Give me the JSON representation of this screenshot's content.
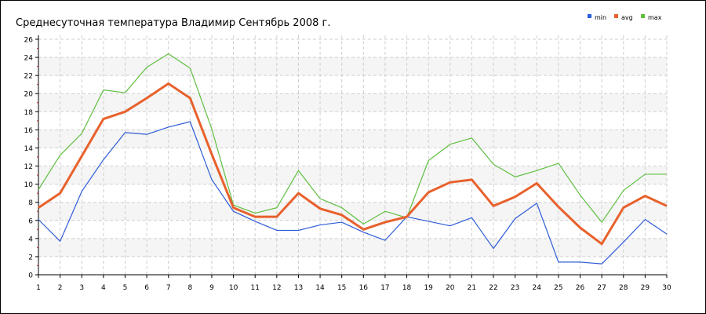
{
  "chart_data": {
    "type": "line",
    "title": "Среднесуточная температура Владимир  Сентябрь 2008 г.",
    "xlabel": "",
    "ylabel": "",
    "x": [
      1,
      2,
      3,
      4,
      5,
      6,
      7,
      8,
      9,
      10,
      11,
      12,
      13,
      14,
      15,
      16,
      17,
      18,
      19,
      20,
      21,
      22,
      23,
      24,
      25,
      26,
      27,
      28,
      29,
      30
    ],
    "xlim": [
      1,
      30
    ],
    "ylim": [
      0,
      26
    ],
    "yticks": [
      0,
      2,
      4,
      6,
      8,
      10,
      12,
      14,
      16,
      18,
      20,
      22,
      24,
      26
    ],
    "grid": true,
    "legend_position": "top-right",
    "series": [
      {
        "name": "min",
        "color": "#2e5bd8",
        "values": [
          6.1,
          3.7,
          9.2,
          12.7,
          15.7,
          15.5,
          16.3,
          16.9,
          10.5,
          7.0,
          5.9,
          4.9,
          4.9,
          5.5,
          5.8,
          4.7,
          3.8,
          6.4,
          5.9,
          5.4,
          6.3,
          2.9,
          6.2,
          7.9,
          1.4,
          1.4,
          1.2,
          3.6,
          6.1,
          4.5
        ]
      },
      {
        "name": "avg",
        "color": "#e8612c",
        "values": [
          7.4,
          9.0,
          13.1,
          17.2,
          18.0,
          19.5,
          21.1,
          19.5,
          13.3,
          7.4,
          6.4,
          6.4,
          9.0,
          7.3,
          6.6,
          5.0,
          5.8,
          6.4,
          9.1,
          10.2,
          10.5,
          7.6,
          8.6,
          10.1,
          7.5,
          5.2,
          3.4,
          7.4,
          8.7,
          7.6
        ]
      },
      {
        "name": "max",
        "color": "#5fbf3f",
        "values": [
          9.4,
          13.2,
          15.6,
          20.4,
          20.1,
          22.9,
          24.4,
          22.8,
          16.1,
          7.7,
          6.8,
          7.4,
          11.5,
          8.4,
          7.4,
          5.6,
          7.0,
          6.3,
          12.6,
          14.4,
          15.1,
          12.2,
          10.8,
          11.5,
          12.3,
          8.8,
          5.8,
          9.3,
          11.1,
          11.1
        ]
      }
    ]
  }
}
